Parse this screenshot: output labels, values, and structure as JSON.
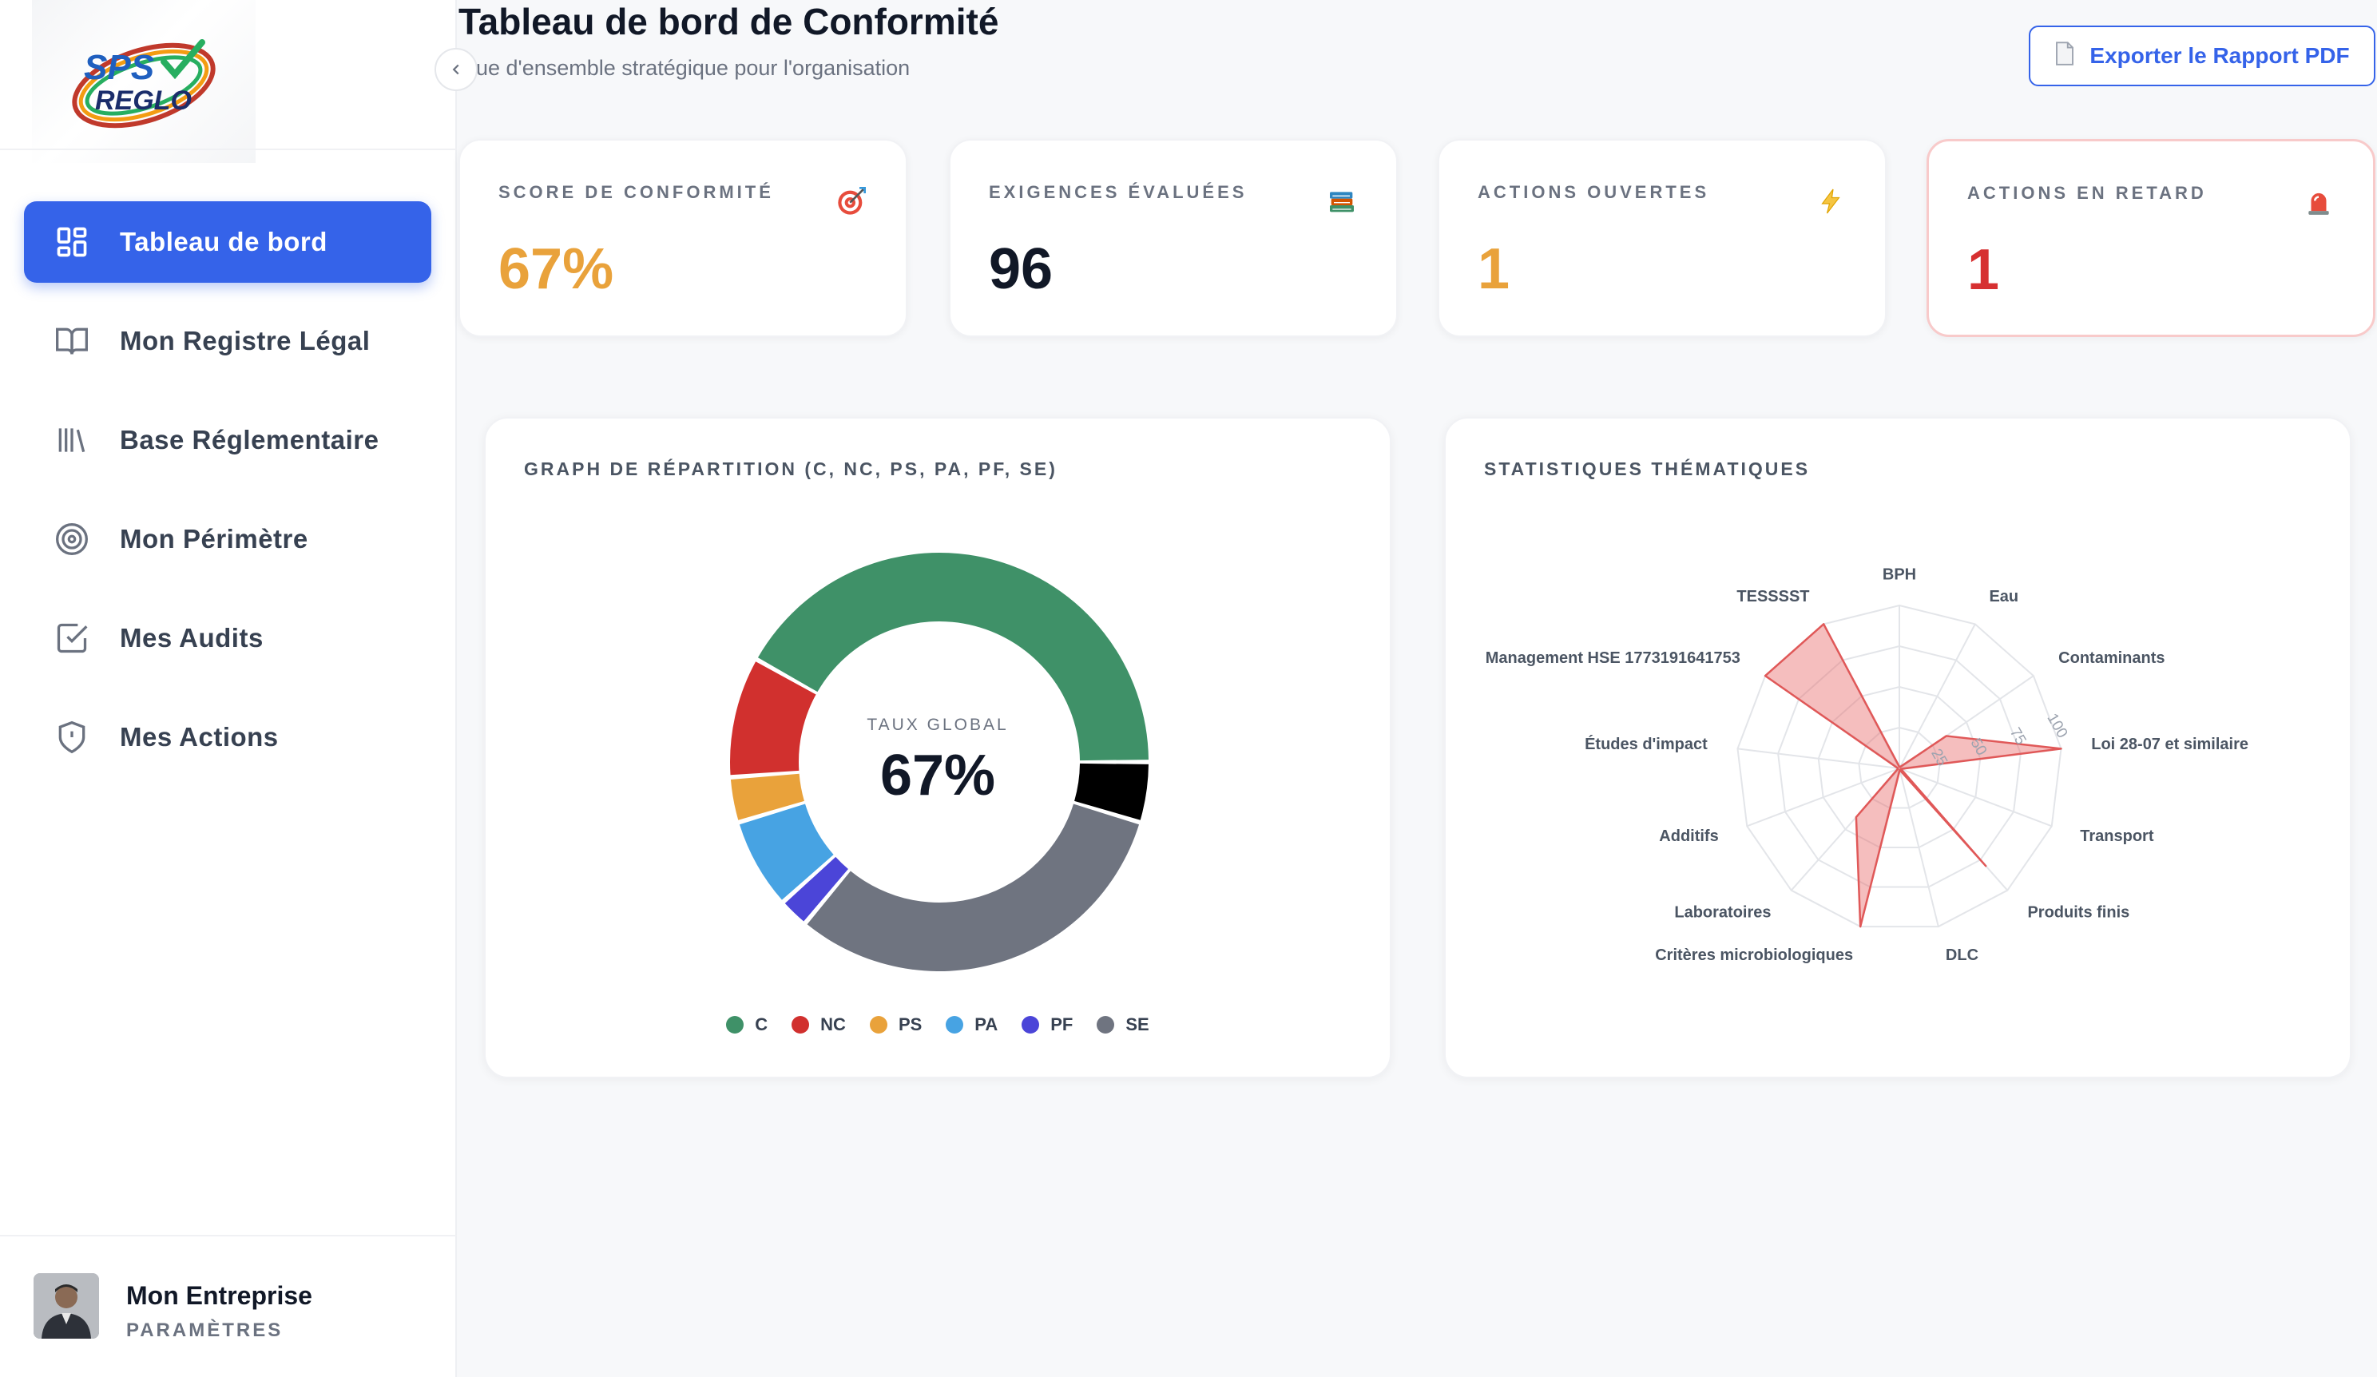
{
  "brand": {
    "logo_text_top": "SPS",
    "logo_text_bottom": "REGLO"
  },
  "sidebar": {
    "items": [
      {
        "label": "Tableau de bord",
        "icon": "dashboard-grid-icon",
        "active": true
      },
      {
        "label": "Mon Registre Légal",
        "icon": "book-icon",
        "active": false
      },
      {
        "label": "Base Réglementaire",
        "icon": "library-icon",
        "active": false
      },
      {
        "label": "Mon Périmètre",
        "icon": "target-icon",
        "active": false
      },
      {
        "label": "Mes Audits",
        "icon": "checkbox-icon",
        "active": false
      },
      {
        "label": "Mes Actions",
        "icon": "shield-alert-icon",
        "active": false
      }
    ],
    "user": {
      "name": "Mon Entreprise",
      "sub": "PARAMÈTRES"
    }
  },
  "header": {
    "title": "Tableau de bord de Conformité",
    "subtitle": "ue d'ensemble stratégique pour l'organisation",
    "export_label": "Exporter le Rapport PDF"
  },
  "kpis": [
    {
      "label": "SCORE DE CONFORMITÉ",
      "value": "67%",
      "color": "#e9a23b",
      "icon": "target-icon"
    },
    {
      "label": "EXIGENCES ÉVALUÉES",
      "value": "96",
      "color": "#111827",
      "icon": "books-icon"
    },
    {
      "label": "ACTIONS OUVERTES",
      "value": "1",
      "color": "#e9a23b",
      "icon": "lightning-icon"
    },
    {
      "label": "ACTIONS EN RETARD",
      "value": "1",
      "color": "#d63031",
      "icon": "siren-icon"
    }
  ],
  "donut": {
    "title": "GRAPH DE RÉPARTITION (C, NC, PS, PA, PF, SE)",
    "center_label": "TAUX GLOBAL",
    "center_value": "67%"
  },
  "radar": {
    "title": "STATISTIQUES THÉMATIQUES"
  },
  "chart_data": [
    {
      "type": "pie",
      "title": "GRAPH DE RÉPARTITION (C, NC, PS, PA, PF, SE)",
      "categories": [
        "C",
        "NC",
        "PS",
        "PA",
        "PF",
        "SE",
        ""
      ],
      "values": [
        36,
        8,
        3,
        6,
        2,
        27,
        4
      ],
      "colors": [
        "#3f9168",
        "#d1302e",
        "#e9a23b",
        "#47a3e3",
        "#4b45d8",
        "#6f7480",
        "#000000"
      ],
      "legend": "bottom",
      "center_label": "TAUX GLOBAL",
      "center_value": "67%"
    },
    {
      "type": "radar",
      "title": "STATISTIQUES THÉMATIQUES",
      "categories": [
        "BPH",
        "Eau",
        "Contaminants",
        "Loi 28-07 et similaire",
        "Transport",
        "Produits finis",
        "DLC",
        "Critères microbiologiques",
        "Laboratoires",
        "Additifs",
        "Études d'impact",
        "Management HSE 1773191641753",
        "TESSSST"
      ],
      "values": [
        0,
        0,
        35,
        100,
        0,
        80,
        0,
        100,
        40,
        0,
        0,
        100,
        100
      ],
      "ticks": [
        "25",
        "50",
        "75",
        "100"
      ],
      "rlim": [
        0,
        100
      ],
      "color": "#e05858"
    }
  ]
}
